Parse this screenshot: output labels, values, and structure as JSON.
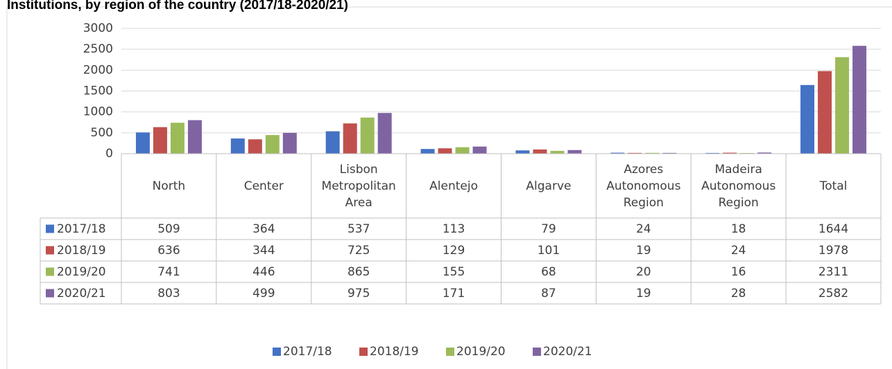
{
  "chart_data": {
    "type": "bar",
    "title": "Institutions, by region of the country (2017/18-2020/21)",
    "categories": [
      "North",
      "Center",
      "Lisbon Metropolitan Area",
      "Alentejo",
      "Algarve",
      "Azores Autonomous Region",
      "Madeira Autonomous Region",
      "Total"
    ],
    "series": [
      {
        "name": "2017/18",
        "color": "#4472c4",
        "values": [
          509,
          364,
          537,
          113,
          79,
          24,
          18,
          1644
        ]
      },
      {
        "name": "2018/19",
        "color": "#c0504d",
        "values": [
          636,
          344,
          725,
          129,
          101,
          19,
          24,
          1978
        ]
      },
      {
        "name": "2019/20",
        "color": "#9bbb59",
        "values": [
          741,
          446,
          865,
          155,
          68,
          20,
          16,
          2311
        ]
      },
      {
        "name": "2020/21",
        "color": "#8064a2",
        "values": [
          803,
          499,
          975,
          171,
          87,
          19,
          28,
          2582
        ]
      }
    ],
    "ylim": [
      0,
      3000
    ],
    "yticks": [
      0,
      500,
      1000,
      1500,
      2000,
      2500,
      3000
    ],
    "grid": true,
    "legend": "bottom"
  }
}
